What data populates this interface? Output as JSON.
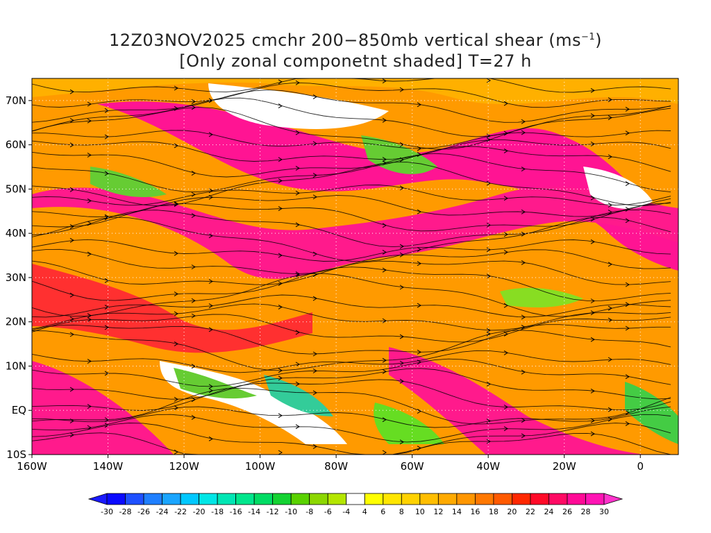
{
  "title": {
    "line1": "12Z03NOV2025 cmchr 200−850mb vertical shear (ms",
    "line1_unit_sup": "−1",
    "line1_end": ")",
    "line2": "[Only zonal componetnt shaded] T=27 h"
  },
  "map": {
    "lat_ticks": [
      "70N",
      "60N",
      "50N",
      "40N",
      "30N",
      "20N",
      "10N",
      "EQ",
      "10S"
    ],
    "lat_values": [
      70,
      60,
      50,
      40,
      30,
      20,
      10,
      0,
      -10
    ],
    "lon_ticks": [
      "160W",
      "140W",
      "120W",
      "100W",
      "80W",
      "60W",
      "40W",
      "20W",
      "0"
    ],
    "lon_values": [
      -160,
      -140,
      -120,
      -100,
      -80,
      -60,
      -40,
      -20,
      0
    ],
    "lon_range": [
      -160,
      10
    ],
    "lat_range": [
      -10,
      75
    ],
    "gridlines": "dotted"
  },
  "colorbar": {
    "labels": [
      "-30",
      "-28",
      "-26",
      "-24",
      "-22",
      "-20",
      "-18",
      "-16",
      "-14",
      "-12",
      "-10",
      "-8",
      "-6",
      "-4",
      "4",
      "6",
      "8",
      "10",
      "12",
      "14",
      "16",
      "18",
      "20",
      "22",
      "24",
      "26",
      "28",
      "30"
    ],
    "colors": [
      "#0a0aff",
      "#1e50ff",
      "#1f7fff",
      "#1aa5ff",
      "#00c8ff",
      "#00e6e6",
      "#00e6b4",
      "#00e68c",
      "#00dc64",
      "#14d232",
      "#5ad200",
      "#8cd700",
      "#b4e600",
      "#ffffff",
      "#ffff00",
      "#ffe600",
      "#ffd200",
      "#ffbe00",
      "#ffaa00",
      "#ff9600",
      "#ff7800",
      "#ff5a00",
      "#ff2800",
      "#ff0a28",
      "#ff0a64",
      "#ff0a96",
      "#ff14b4"
    ],
    "under_color": "#1a1aff",
    "over_color": "#ff33cc"
  }
}
